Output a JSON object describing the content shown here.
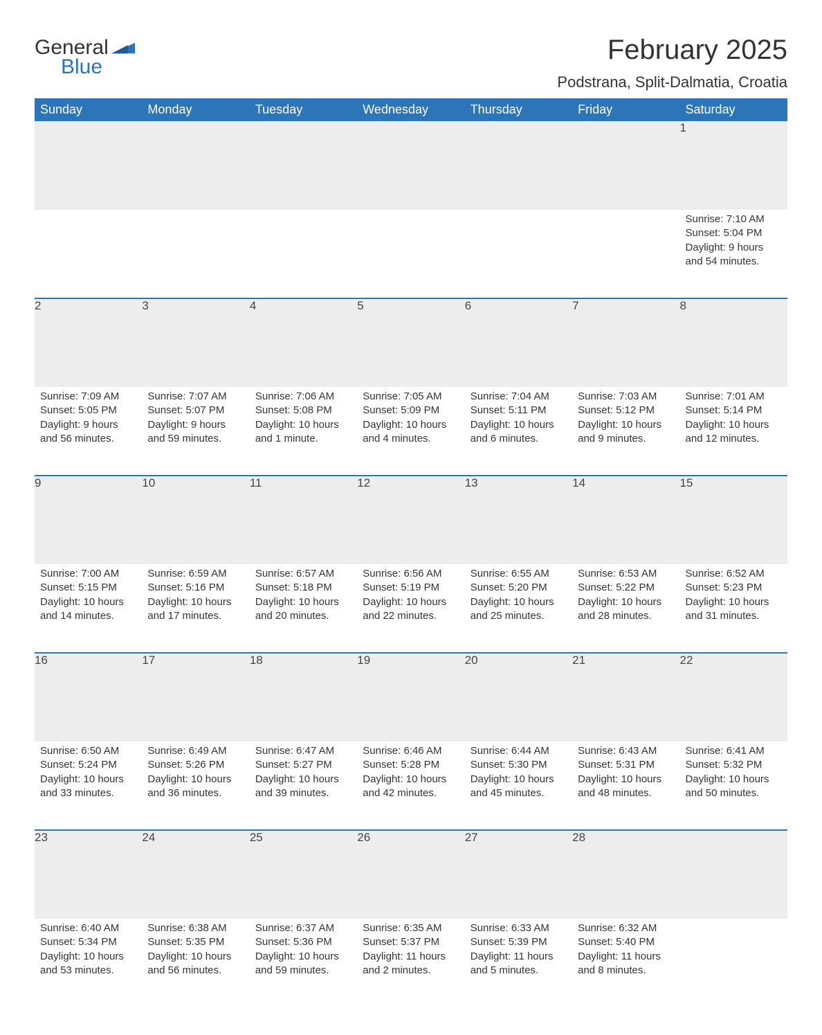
{
  "logo": {
    "text1": "General",
    "text2": "Blue"
  },
  "colors": {
    "header_bg": "#2b75b8",
    "header_text": "#ffffff",
    "daynum_bg": "#ededed",
    "row_border": "#2b75b8",
    "body_text": "#333333",
    "logo_accent": "#2b75b8"
  },
  "title": "February 2025",
  "location": "Podstrana, Split-Dalmatia, Croatia",
  "weekdays": [
    "Sunday",
    "Monday",
    "Tuesday",
    "Wednesday",
    "Thursday",
    "Friday",
    "Saturday"
  ],
  "weeks": [
    [
      {
        "n": "",
        "sunrise": "",
        "sunset": "",
        "daylight": ""
      },
      {
        "n": "",
        "sunrise": "",
        "sunset": "",
        "daylight": ""
      },
      {
        "n": "",
        "sunrise": "",
        "sunset": "",
        "daylight": ""
      },
      {
        "n": "",
        "sunrise": "",
        "sunset": "",
        "daylight": ""
      },
      {
        "n": "",
        "sunrise": "",
        "sunset": "",
        "daylight": ""
      },
      {
        "n": "",
        "sunrise": "",
        "sunset": "",
        "daylight": ""
      },
      {
        "n": "1",
        "sunrise": "Sunrise: 7:10 AM",
        "sunset": "Sunset: 5:04 PM",
        "daylight": "Daylight: 9 hours and 54 minutes."
      }
    ],
    [
      {
        "n": "2",
        "sunrise": "Sunrise: 7:09 AM",
        "sunset": "Sunset: 5:05 PM",
        "daylight": "Daylight: 9 hours and 56 minutes."
      },
      {
        "n": "3",
        "sunrise": "Sunrise: 7:07 AM",
        "sunset": "Sunset: 5:07 PM",
        "daylight": "Daylight: 9 hours and 59 minutes."
      },
      {
        "n": "4",
        "sunrise": "Sunrise: 7:06 AM",
        "sunset": "Sunset: 5:08 PM",
        "daylight": "Daylight: 10 hours and 1 minute."
      },
      {
        "n": "5",
        "sunrise": "Sunrise: 7:05 AM",
        "sunset": "Sunset: 5:09 PM",
        "daylight": "Daylight: 10 hours and 4 minutes."
      },
      {
        "n": "6",
        "sunrise": "Sunrise: 7:04 AM",
        "sunset": "Sunset: 5:11 PM",
        "daylight": "Daylight: 10 hours and 6 minutes."
      },
      {
        "n": "7",
        "sunrise": "Sunrise: 7:03 AM",
        "sunset": "Sunset: 5:12 PM",
        "daylight": "Daylight: 10 hours and 9 minutes."
      },
      {
        "n": "8",
        "sunrise": "Sunrise: 7:01 AM",
        "sunset": "Sunset: 5:14 PM",
        "daylight": "Daylight: 10 hours and 12 minutes."
      }
    ],
    [
      {
        "n": "9",
        "sunrise": "Sunrise: 7:00 AM",
        "sunset": "Sunset: 5:15 PM",
        "daylight": "Daylight: 10 hours and 14 minutes."
      },
      {
        "n": "10",
        "sunrise": "Sunrise: 6:59 AM",
        "sunset": "Sunset: 5:16 PM",
        "daylight": "Daylight: 10 hours and 17 minutes."
      },
      {
        "n": "11",
        "sunrise": "Sunrise: 6:57 AM",
        "sunset": "Sunset: 5:18 PM",
        "daylight": "Daylight: 10 hours and 20 minutes."
      },
      {
        "n": "12",
        "sunrise": "Sunrise: 6:56 AM",
        "sunset": "Sunset: 5:19 PM",
        "daylight": "Daylight: 10 hours and 22 minutes."
      },
      {
        "n": "13",
        "sunrise": "Sunrise: 6:55 AM",
        "sunset": "Sunset: 5:20 PM",
        "daylight": "Daylight: 10 hours and 25 minutes."
      },
      {
        "n": "14",
        "sunrise": "Sunrise: 6:53 AM",
        "sunset": "Sunset: 5:22 PM",
        "daylight": "Daylight: 10 hours and 28 minutes."
      },
      {
        "n": "15",
        "sunrise": "Sunrise: 6:52 AM",
        "sunset": "Sunset: 5:23 PM",
        "daylight": "Daylight: 10 hours and 31 minutes."
      }
    ],
    [
      {
        "n": "16",
        "sunrise": "Sunrise: 6:50 AM",
        "sunset": "Sunset: 5:24 PM",
        "daylight": "Daylight: 10 hours and 33 minutes."
      },
      {
        "n": "17",
        "sunrise": "Sunrise: 6:49 AM",
        "sunset": "Sunset: 5:26 PM",
        "daylight": "Daylight: 10 hours and 36 minutes."
      },
      {
        "n": "18",
        "sunrise": "Sunrise: 6:47 AM",
        "sunset": "Sunset: 5:27 PM",
        "daylight": "Daylight: 10 hours and 39 minutes."
      },
      {
        "n": "19",
        "sunrise": "Sunrise: 6:46 AM",
        "sunset": "Sunset: 5:28 PM",
        "daylight": "Daylight: 10 hours and 42 minutes."
      },
      {
        "n": "20",
        "sunrise": "Sunrise: 6:44 AM",
        "sunset": "Sunset: 5:30 PM",
        "daylight": "Daylight: 10 hours and 45 minutes."
      },
      {
        "n": "21",
        "sunrise": "Sunrise: 6:43 AM",
        "sunset": "Sunset: 5:31 PM",
        "daylight": "Daylight: 10 hours and 48 minutes."
      },
      {
        "n": "22",
        "sunrise": "Sunrise: 6:41 AM",
        "sunset": "Sunset: 5:32 PM",
        "daylight": "Daylight: 10 hours and 50 minutes."
      }
    ],
    [
      {
        "n": "23",
        "sunrise": "Sunrise: 6:40 AM",
        "sunset": "Sunset: 5:34 PM",
        "daylight": "Daylight: 10 hours and 53 minutes."
      },
      {
        "n": "24",
        "sunrise": "Sunrise: 6:38 AM",
        "sunset": "Sunset: 5:35 PM",
        "daylight": "Daylight: 10 hours and 56 minutes."
      },
      {
        "n": "25",
        "sunrise": "Sunrise: 6:37 AM",
        "sunset": "Sunset: 5:36 PM",
        "daylight": "Daylight: 10 hours and 59 minutes."
      },
      {
        "n": "26",
        "sunrise": "Sunrise: 6:35 AM",
        "sunset": "Sunset: 5:37 PM",
        "daylight": "Daylight: 11 hours and 2 minutes."
      },
      {
        "n": "27",
        "sunrise": "Sunrise: 6:33 AM",
        "sunset": "Sunset: 5:39 PM",
        "daylight": "Daylight: 11 hours and 5 minutes."
      },
      {
        "n": "28",
        "sunrise": "Sunrise: 6:32 AM",
        "sunset": "Sunset: 5:40 PM",
        "daylight": "Daylight: 11 hours and 8 minutes."
      },
      {
        "n": "",
        "sunrise": "",
        "sunset": "",
        "daylight": ""
      }
    ]
  ]
}
